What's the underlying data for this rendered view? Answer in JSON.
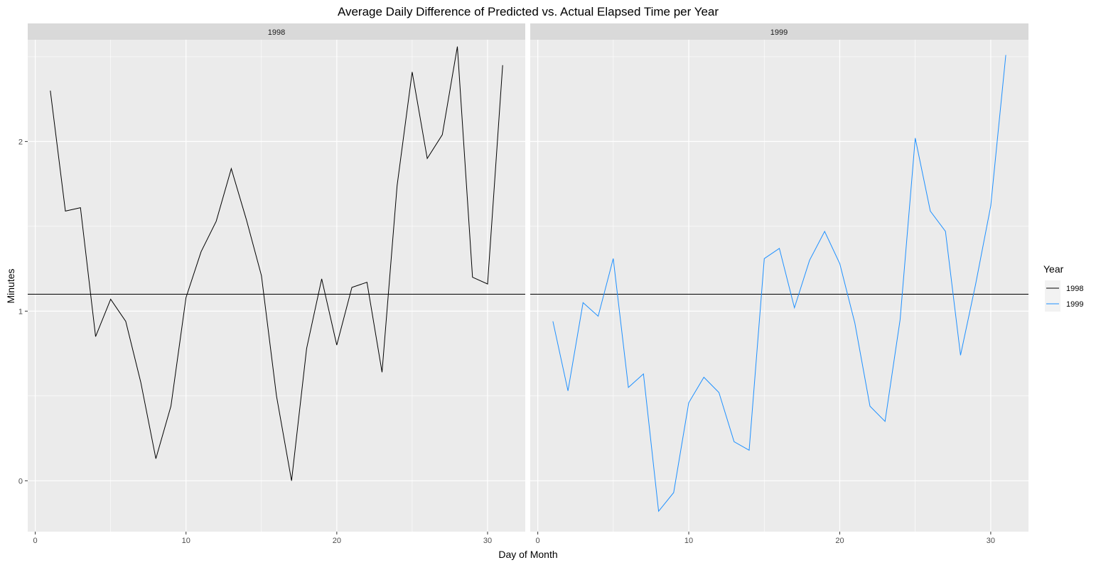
{
  "chart_data": {
    "type": "line",
    "title": "Average Daily Difference of Predicted vs. Actual Elapsed Time per Year",
    "xlabel": "Day of Month",
    "ylabel": "Minutes",
    "xlim": [
      -0.5,
      32.5
    ],
    "ylim": [
      -0.3,
      2.6
    ],
    "x_ticks": [
      0,
      10,
      20,
      30
    ],
    "y_ticks": [
      0,
      1,
      2
    ],
    "x_tick_labels": [
      "0",
      "10",
      "20",
      "30"
    ],
    "y_tick_labels": [
      "0",
      "1",
      "2"
    ],
    "reference_line": 1.1,
    "grid": true,
    "legend_title": "Year",
    "legend_position": "right",
    "panels": [
      "1998",
      "1999"
    ],
    "x": [
      1,
      2,
      3,
      4,
      5,
      6,
      7,
      8,
      9,
      10,
      11,
      12,
      13,
      14,
      15,
      16,
      17,
      18,
      19,
      20,
      21,
      22,
      23,
      24,
      25,
      26,
      27,
      28,
      29,
      30,
      31
    ],
    "series": [
      {
        "name": "1998",
        "color": "#000000",
        "values": [
          2.3,
          1.59,
          1.61,
          0.85,
          1.07,
          0.94,
          0.58,
          0.13,
          0.44,
          1.08,
          1.35,
          1.53,
          1.84,
          1.54,
          1.21,
          0.5,
          0.0,
          0.78,
          1.19,
          0.8,
          1.14,
          1.17,
          0.64,
          1.74,
          2.41,
          1.9,
          2.04,
          2.56,
          1.2,
          1.16,
          2.45
        ]
      },
      {
        "name": "1999",
        "color": "#1e90ff",
        "values": [
          0.94,
          0.53,
          1.05,
          0.97,
          1.31,
          0.55,
          0.63,
          -0.18,
          -0.07,
          0.46,
          0.61,
          0.52,
          0.23,
          0.18,
          1.31,
          1.37,
          1.02,
          1.3,
          1.47,
          1.28,
          0.93,
          0.44,
          0.35,
          0.95,
          2.02,
          1.59,
          1.47,
          0.74,
          1.16,
          1.62,
          2.51
        ]
      }
    ]
  }
}
